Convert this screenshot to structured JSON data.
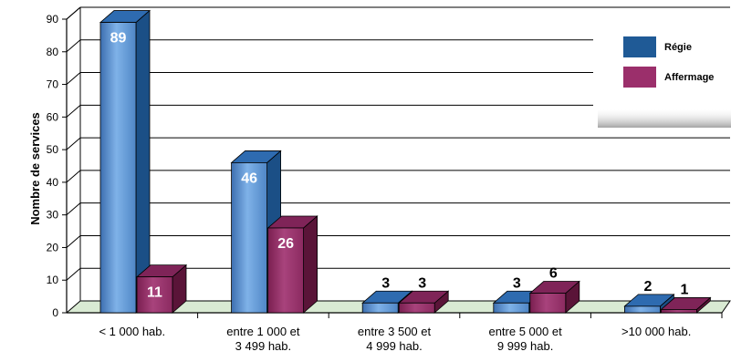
{
  "chart_data": {
    "type": "bar",
    "categories": [
      [
        "< 1 000 hab."
      ],
      [
        "entre 1 000 et",
        "3 499 hab."
      ],
      [
        "entre 3 500 et",
        "4 999 hab."
      ],
      [
        "entre 5 000 et",
        "9 999 hab."
      ],
      [
        ">10 000 hab."
      ]
    ],
    "series": [
      {
        "name": "Régie",
        "values": [
          89,
          46,
          3,
          3,
          2
        ],
        "color": "#5b9bd5",
        "data_labels": [
          "89",
          "46",
          "3",
          "3",
          "2"
        ]
      },
      {
        "name": "Affermage",
        "values": [
          11,
          26,
          3,
          6,
          1
        ],
        "color": "#9b2f6b",
        "data_labels": [
          "11",
          "26",
          "3",
          "6",
          "1"
        ]
      }
    ],
    "ylabel": "Nombre de services",
    "ylim": [
      0,
      90
    ],
    "yticks": [
      "0",
      "10",
      "20",
      "30",
      "40",
      "50",
      "60",
      "70",
      "80",
      "90"
    ],
    "grid": true,
    "legend": "top-right",
    "legend_colors": [
      "#1f5a96",
      "#9b2f6b"
    ]
  }
}
